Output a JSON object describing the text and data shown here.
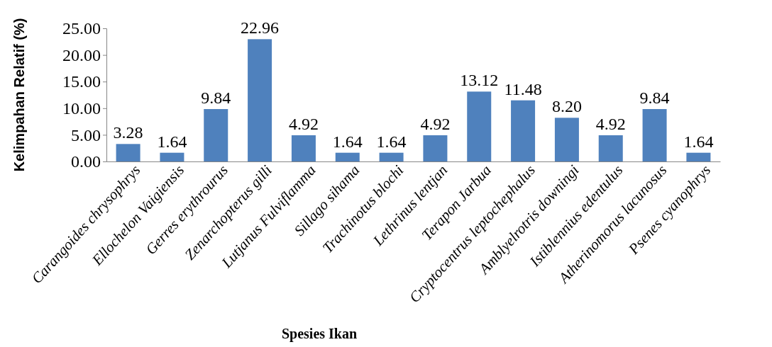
{
  "chart_data": {
    "type": "bar",
    "xlabel": "Spesies Ikan",
    "ylabel": "Kelimpahan Relatif (%)",
    "categories": [
      "Carangoides chrysophrys",
      "Ellochelon Vaigiensis",
      "Gerres erythrourus",
      "Zenarchopterus gilli",
      "Lutjanus Fulviflamma",
      "Sillago sihama",
      "Trachinotus blochi",
      "Lethrinus lentjan",
      "Terapon Jarbua",
      "Cryptocentrus leptochephalus",
      "Amblyelrotris downingi",
      "Istiblennius edentulus",
      "Atherinomorus lacunosus",
      "Psenes cyanophrys"
    ],
    "values": [
      3.28,
      1.64,
      9.84,
      22.96,
      4.92,
      1.64,
      1.64,
      4.92,
      13.12,
      11.48,
      8.2,
      4.92,
      9.84,
      1.64
    ],
    "value_labels": [
      "3.28",
      "1.64",
      "9.84",
      "22.96",
      "4.92",
      "1.64",
      "1.64",
      "4.92",
      "13.12",
      "11.48",
      "8.20",
      "4.92",
      "9.84",
      "1.64"
    ],
    "color": "#4f81bd",
    "ylim": [
      0,
      25
    ],
    "yticks": [
      {
        "value": 0,
        "label": "0.00"
      },
      {
        "value": 5,
        "label": "5.00"
      },
      {
        "value": 10,
        "label": "10.00"
      },
      {
        "value": 15,
        "label": "15.00"
      },
      {
        "value": 20,
        "label": "20.00"
      },
      {
        "value": 25,
        "label": "25.00"
      }
    ],
    "grid": false
  }
}
